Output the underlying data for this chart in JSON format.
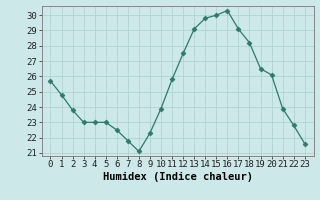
{
  "x": [
    0,
    1,
    2,
    3,
    4,
    5,
    6,
    7,
    8,
    9,
    10,
    11,
    12,
    13,
    14,
    15,
    16,
    17,
    18,
    19,
    20,
    21,
    22,
    23
  ],
  "y": [
    25.7,
    24.8,
    23.8,
    23.0,
    23.0,
    23.0,
    22.5,
    21.8,
    21.1,
    22.3,
    23.9,
    25.8,
    27.5,
    29.1,
    29.8,
    30.0,
    30.3,
    29.1,
    28.2,
    26.5,
    26.1,
    23.9,
    22.8,
    21.6
  ],
  "line_color": "#2d7a6a",
  "marker": "D",
  "marker_size": 2.5,
  "bg_color": "#cce8e8",
  "grid_color": "#aacfcf",
  "xlabel": "Humidex (Indice chaleur)",
  "ylim": [
    20.8,
    30.6
  ],
  "xlim": [
    -0.8,
    23.8
  ],
  "yticks": [
    21,
    22,
    23,
    24,
    25,
    26,
    27,
    28,
    29,
    30
  ],
  "xticks": [
    0,
    1,
    2,
    3,
    4,
    5,
    6,
    7,
    8,
    9,
    10,
    11,
    12,
    13,
    14,
    15,
    16,
    17,
    18,
    19,
    20,
    21,
    22,
    23
  ],
  "tick_fontsize": 6.5,
  "label_fontsize": 7.5
}
